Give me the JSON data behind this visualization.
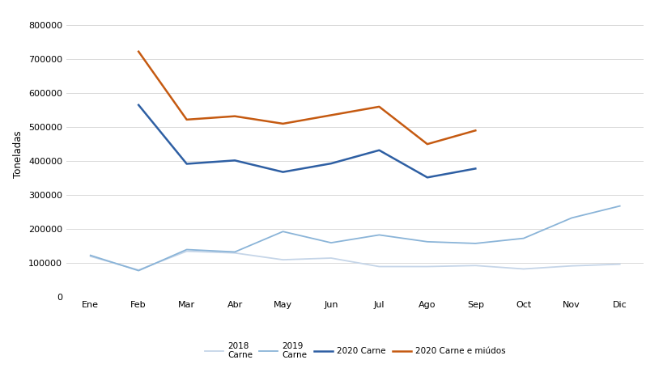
{
  "months": [
    "Ene",
    "Feb",
    "Mar",
    "Abr",
    "May",
    "Jun",
    "Jul",
    "Ago",
    "Sep",
    "Oct",
    "Nov",
    "Dic"
  ],
  "series": {
    "2018 Carne": [
      120000,
      80000,
      135000,
      130000,
      110000,
      115000,
      90000,
      90000,
      93000,
      83000,
      92000,
      97000
    ],
    "2019 Carne": [
      123000,
      78000,
      140000,
      133000,
      193000,
      160000,
      183000,
      163000,
      158000,
      173000,
      233000,
      268000
    ],
    "2020 Carne": [
      null,
      565000,
      392000,
      402000,
      368000,
      393000,
      432000,
      352000,
      378000,
      null,
      null,
      null
    ],
    "2020 Carne e miudos": [
      null,
      722000,
      522000,
      532000,
      510000,
      535000,
      560000,
      450000,
      490000,
      null,
      null,
      null
    ]
  },
  "colors": {
    "2018 Carne": "#c5d5e8",
    "2019 Carne": "#8ab4d8",
    "2020 Carne": "#2e5fa3",
    "2020 Carne e miudos": "#c55a11"
  },
  "linewidths": {
    "2018 Carne": 1.3,
    "2019 Carne": 1.3,
    "2020 Carne": 1.8,
    "2020 Carne e miudos": 1.8
  },
  "legend_labels": {
    "2018 Carne": "2018\nCarne",
    "2019 Carne": "2019\nCarne",
    "2020 Carne": "2020 Carne",
    "2020 Carne e miudos": "2020 Carne e miúdos"
  },
  "ylabel": "Toneladas",
  "ylim": [
    0,
    840000
  ],
  "yticks": [
    0,
    100000,
    200000,
    300000,
    400000,
    500000,
    600000,
    700000,
    800000
  ],
  "background_color": "#ffffff",
  "grid_color": "#d9d9d9",
  "tick_fontsize": 8,
  "ylabel_fontsize": 8.5
}
